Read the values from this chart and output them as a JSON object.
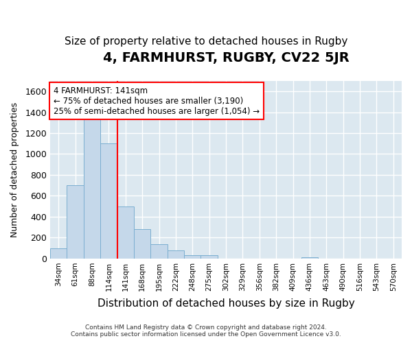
{
  "title": "4, FARMHURST, RUGBY, CV22 5JR",
  "subtitle": "Size of property relative to detached houses in Rugby",
  "xlabel": "Distribution of detached houses by size in Rugby",
  "ylabel": "Number of detached properties",
  "footer_line1": "Contains HM Land Registry data © Crown copyright and database right 2024.",
  "footer_line2": "Contains public sector information licensed under the Open Government Licence v3.0.",
  "annotation_line1": "4 FARMHURST: 141sqm",
  "annotation_line2": "← 75% of detached houses are smaller (3,190)",
  "annotation_line3": "25% of semi-detached houses are larger (1,054) →",
  "bar_color": "#c5d8ea",
  "bar_edge_color": "#7aaed0",
  "red_line_index": 4,
  "categories": [
    "34sqm",
    "61sqm",
    "88sqm",
    "114sqm",
    "141sqm",
    "168sqm",
    "195sqm",
    "222sqm",
    "248sqm",
    "275sqm",
    "302sqm",
    "329sqm",
    "356sqm",
    "382sqm",
    "409sqm",
    "436sqm",
    "463sqm",
    "490sqm",
    "516sqm",
    "543sqm",
    "570sqm"
  ],
  "values": [
    100,
    700,
    1340,
    1100,
    500,
    280,
    140,
    75,
    30,
    35,
    0,
    0,
    0,
    0,
    0,
    15,
    0,
    0,
    0,
    0,
    0
  ],
  "ylim": [
    0,
    1700
  ],
  "yticks": [
    0,
    200,
    400,
    600,
    800,
    1000,
    1200,
    1400,
    1600
  ],
  "fig_bg_color": "#ffffff",
  "plot_bg_color": "#dce8f0",
  "grid_color": "#ffffff",
  "title_fontsize": 14,
  "subtitle_fontsize": 11,
  "ylabel_fontsize": 9,
  "xlabel_fontsize": 11
}
